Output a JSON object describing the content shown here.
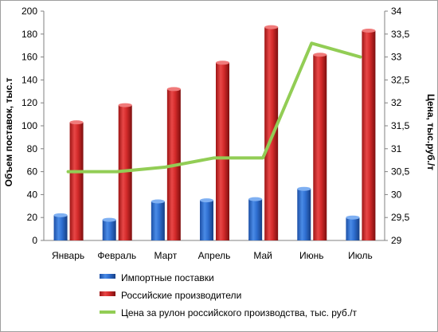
{
  "chart_data": {
    "type": "bar",
    "categories": [
      "Январь",
      "Февраль",
      "Март",
      "Апрель",
      "Май",
      "Июнь",
      "Июль"
    ],
    "series": [
      {
        "name": "Импортные поставки",
        "type": "bar",
        "axis": "left",
        "color": "#2f6fd1",
        "values": [
          22,
          18,
          34,
          35,
          36,
          45,
          20
        ]
      },
      {
        "name": "Российские производители",
        "type": "bar",
        "axis": "left",
        "color": "#d32a2a",
        "values": [
          103,
          118,
          132,
          155,
          186,
          162,
          183
        ]
      },
      {
        "name": "Цена за рулон российского производства, тыс. руб./т",
        "type": "line",
        "axis": "right",
        "color": "#92cd55",
        "values": [
          30.5,
          30.5,
          30.6,
          30.8,
          30.8,
          33.3,
          33.0
        ]
      }
    ],
    "ylabel": "Объем поставок, тыс.т",
    "ylabel_right": "Цена, тыс.руб./т",
    "ylim": [
      0,
      200
    ],
    "ylim_right": [
      29,
      34
    ],
    "yticks": [
      "0",
      "20",
      "40",
      "60",
      "80",
      "100",
      "120",
      "140",
      "160",
      "180",
      "200"
    ],
    "yticks_right": [
      "29",
      "29,5",
      "30",
      "30,5",
      "31",
      "31,5",
      "32",
      "32,5",
      "33",
      "33,5",
      "34"
    ],
    "grid": false,
    "legend_position": "bottom"
  }
}
